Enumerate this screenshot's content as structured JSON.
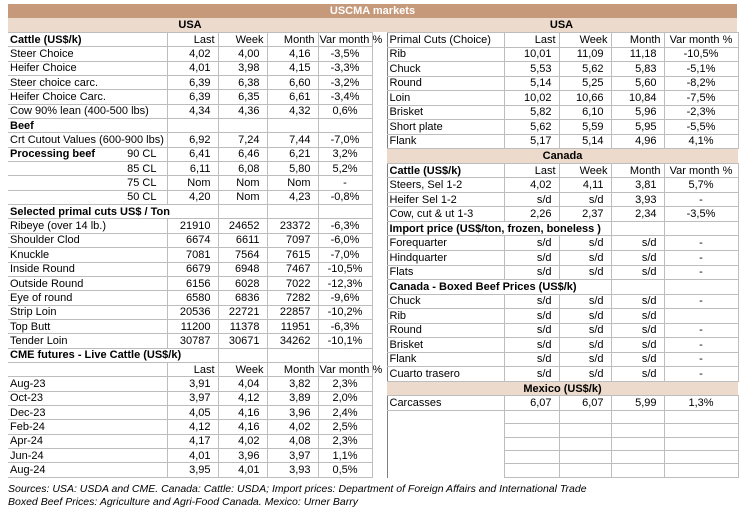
{
  "title": "USCMA markets",
  "colors": {
    "title_band": "#C6997B",
    "region_band": "#ECDACC",
    "grid_line": "#BDBDBD",
    "table_edge": "#7F7F7F",
    "title_text": "#FFFFFF"
  },
  "region_bands": {
    "left_label": "USA",
    "right_label": "USA"
  },
  "left_table": {
    "rows": [
      {
        "kind": "header",
        "bold": true,
        "label": "Cattle (US$/k)",
        "values": [
          "Last",
          "Week",
          "Month",
          "Var month %"
        ]
      },
      {
        "kind": "data",
        "label": "Steer Choice",
        "values": [
          "4,02",
          "4,00",
          "4,16",
          "-3,5%"
        ]
      },
      {
        "kind": "data",
        "label": "Heifer Choice",
        "values": [
          "4,01",
          "3,98",
          "4,15",
          "-3,3%"
        ]
      },
      {
        "kind": "data",
        "label": "Steer choice carc.",
        "values": [
          "6,39",
          "6,38",
          "6,60",
          "-3,2%"
        ]
      },
      {
        "kind": "data",
        "label": "Heifer Choice Carc.",
        "values": [
          "6,39",
          "6,35",
          "6,61",
          "-3,4%"
        ]
      },
      {
        "kind": "data",
        "label": "Cow 90% lean (400-500 lbs)",
        "values": [
          "4,34",
          "4,36",
          "4,32",
          "0,6%"
        ]
      },
      {
        "kind": "section",
        "span": 1,
        "label": "Beef"
      },
      {
        "kind": "data",
        "label": "Crt Cutout Values (600-900 lbs)",
        "values": [
          "6,92",
          "7,24",
          "7,44",
          "-7,0%"
        ]
      },
      {
        "kind": "data",
        "label": "Processing beef",
        "labelBold": true,
        "sub": "90 CL",
        "values": [
          "6,41",
          "6,46",
          "6,21",
          "3,2%"
        ]
      },
      {
        "kind": "data",
        "label": "",
        "sub": "85 CL",
        "values": [
          "6,11",
          "6,08",
          "5,80",
          "5,2%"
        ]
      },
      {
        "kind": "data",
        "label": "",
        "sub": "75 CL",
        "values": [
          "Nom",
          "Nom",
          "Nom",
          "-"
        ]
      },
      {
        "kind": "data",
        "label": "",
        "sub": "50 CL",
        "values": [
          "4,20",
          "Nom",
          "4,23",
          "-0,8%"
        ]
      },
      {
        "kind": "section",
        "span": 2,
        "label": "Selected primal cuts US$ / Ton"
      },
      {
        "kind": "data",
        "label": "Ribeye (over 14 lb.)",
        "values": [
          "21910",
          "24652",
          "23372",
          "-6,3%"
        ]
      },
      {
        "kind": "data",
        "label": "Shoulder Clod",
        "values": [
          "6674",
          "6611",
          "7097",
          "-6,0%"
        ]
      },
      {
        "kind": "data",
        "label": "Knuckle",
        "values": [
          "7081",
          "7564",
          "7615",
          "-7,0%"
        ]
      },
      {
        "kind": "data",
        "label": "Inside Round",
        "values": [
          "6679",
          "6948",
          "7467",
          "-10,5%"
        ]
      },
      {
        "kind": "data",
        "label": "Outside Round",
        "values": [
          "6156",
          "6028",
          "7022",
          "-12,3%"
        ]
      },
      {
        "kind": "data",
        "label": "Eye of round",
        "values": [
          "6580",
          "6836",
          "7282",
          "-9,6%"
        ]
      },
      {
        "kind": "data",
        "label": "Strip Loin",
        "values": [
          "20536",
          "22721",
          "22857",
          "-10,2%"
        ]
      },
      {
        "kind": "data",
        "label": "Top Butt",
        "values": [
          "11200",
          "11378",
          "11951",
          "-6,3%"
        ]
      },
      {
        "kind": "data",
        "label": "Tender Loin",
        "values": [
          "30787",
          "30671",
          "34262",
          "-10,1%"
        ]
      },
      {
        "kind": "section",
        "span": 2,
        "label": "CME futures - Live Cattle (US$/k)"
      },
      {
        "kind": "header",
        "bold": false,
        "label": "",
        "values": [
          "Last",
          "Week",
          "Month",
          "Var month %"
        ]
      },
      {
        "kind": "data",
        "label": "Aug-23",
        "values": [
          "3,91",
          "4,04",
          "3,82",
          "2,3%"
        ]
      },
      {
        "kind": "data",
        "label": "Oct-23",
        "values": [
          "3,97",
          "4,12",
          "3,89",
          "2,0%"
        ]
      },
      {
        "kind": "data",
        "label": "Dec-23",
        "values": [
          "4,05",
          "4,16",
          "3,96",
          "2,4%"
        ]
      },
      {
        "kind": "data",
        "label": "Feb-24",
        "values": [
          "4,12",
          "4,16",
          "4,02",
          "2,5%"
        ]
      },
      {
        "kind": "data",
        "label": "Apr-24",
        "values": [
          "4,17",
          "4,02",
          "4,08",
          "2,3%"
        ]
      },
      {
        "kind": "data",
        "label": "Jun-24",
        "values": [
          "4,01",
          "3,96",
          "3,97",
          "1,1%"
        ]
      },
      {
        "kind": "data",
        "label": "Aug-24",
        "values": [
          "3,95",
          "4,01",
          "3,93",
          "0,5%"
        ]
      }
    ]
  },
  "right_table": {
    "rows": [
      {
        "kind": "header",
        "bold": false,
        "label": "Primal Cuts (Choice)",
        "values": [
          "Last",
          "Week",
          "Month",
          "Var month %"
        ]
      },
      {
        "kind": "data",
        "label": "Rib",
        "values": [
          "10,01",
          "11,09",
          "11,18",
          "-10,5%"
        ]
      },
      {
        "kind": "data",
        "label": "Chuck",
        "values": [
          "5,53",
          "5,62",
          "5,83",
          "-5,1%"
        ]
      },
      {
        "kind": "data",
        "label": "Round",
        "values": [
          "5,14",
          "5,25",
          "5,60",
          "-8,2%"
        ]
      },
      {
        "kind": "data",
        "label": "Loin",
        "values": [
          "10,02",
          "10,66",
          "10,84",
          "-7,5%"
        ]
      },
      {
        "kind": "data",
        "label": "Brisket",
        "values": [
          "5,82",
          "6,10",
          "5,96",
          "-2,3%"
        ]
      },
      {
        "kind": "data",
        "label": "Short plate",
        "values": [
          "5,62",
          "5,59",
          "5,95",
          "-5,5%"
        ]
      },
      {
        "kind": "data",
        "label": "Flank",
        "values": [
          "5,17",
          "5,14",
          "4,96",
          "4,1%"
        ]
      },
      {
        "kind": "band",
        "label": "Canada"
      },
      {
        "kind": "header",
        "bold": true,
        "label": "Cattle (US$/k)",
        "values": [
          "Last",
          "Week",
          "Month",
          "Var month %"
        ]
      },
      {
        "kind": "data",
        "label": "Steers, Sel 1-2",
        "values": [
          "4,02",
          "4,11",
          "3,81",
          "5,7%"
        ]
      },
      {
        "kind": "data",
        "label": "Heifer Sel 1-2",
        "values": [
          "s/d",
          "s/d",
          "3,93",
          "-"
        ]
      },
      {
        "kind": "data",
        "label": "Cow, cut & ut 1-3",
        "values": [
          "2,26",
          "2,37",
          "2,34",
          "-3,5%"
        ]
      },
      {
        "kind": "section",
        "span": 3,
        "label": "Import price (US$/ton, frozen, boneless )"
      },
      {
        "kind": "data",
        "label": "Forequarter",
        "values": [
          "s/d",
          "s/d",
          "s/d",
          "-"
        ]
      },
      {
        "kind": "data",
        "label": "Hindquarter",
        "values": [
          "s/d",
          "s/d",
          "s/d",
          "-"
        ]
      },
      {
        "kind": "data",
        "label": "Flats",
        "values": [
          "s/d",
          "s/d",
          "s/d",
          "-"
        ]
      },
      {
        "kind": "section",
        "span": 3,
        "label": "Canada - Boxed Beef Prices (US$/k)"
      },
      {
        "kind": "data",
        "label": "Chuck",
        "values": [
          "s/d",
          "s/d",
          "s/d",
          "-"
        ]
      },
      {
        "kind": "data",
        "label": "Rib",
        "values": [
          "s/d",
          "s/d",
          "s/d",
          ""
        ]
      },
      {
        "kind": "data",
        "label": "Round",
        "values": [
          "s/d",
          "s/d",
          "s/d",
          "-"
        ]
      },
      {
        "kind": "data",
        "label": "Brisket",
        "values": [
          "s/d",
          "s/d",
          "s/d",
          "-"
        ]
      },
      {
        "kind": "data",
        "label": "Flank",
        "values": [
          "s/d",
          "s/d",
          "s/d",
          "-"
        ]
      },
      {
        "kind": "data",
        "label": "Cuarto trasero",
        "values": [
          "s/d",
          "s/d",
          "s/d",
          "-"
        ]
      },
      {
        "kind": "band",
        "label": "Mexico (US$/k)"
      },
      {
        "kind": "data",
        "label": "Carcasses",
        "values": [
          "6,07",
          "6,07",
          "5,99",
          "1,3%"
        ]
      },
      {
        "kind": "empty"
      },
      {
        "kind": "empty"
      },
      {
        "kind": "empty"
      },
      {
        "kind": "empty"
      },
      {
        "kind": "empty"
      }
    ]
  },
  "footer": {
    "line1": "Sources: USA: USDA and CME. Canada: Cattle: USDA; Import prices: Department of Foreign Affairs and International Trade",
    "line2": "Boxed Beef Prices: Agriculture and Agri-Food Canada. Mexico: Urner Barry"
  }
}
